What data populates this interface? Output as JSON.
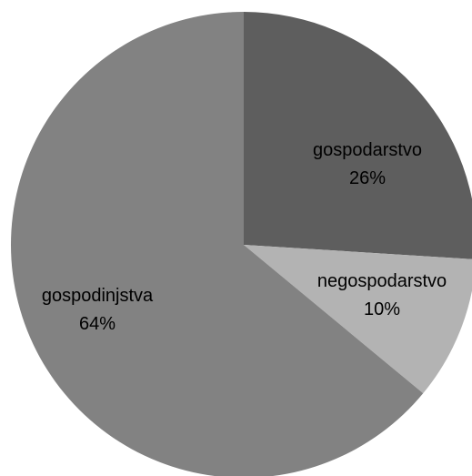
{
  "chart_data": {
    "type": "pie",
    "slices": [
      {
        "label": "gospodarstvo",
        "percent_label": "26%",
        "value": 26,
        "color": "#5e5e5e"
      },
      {
        "label": "negospodarstvo",
        "percent_label": "10%",
        "value": 10,
        "color": "#b3b3b3"
      },
      {
        "label": "gospodinjstva",
        "percent_label": "64%",
        "value": 64,
        "color": "#828282"
      }
    ],
    "start": "top",
    "direction": "clockwise",
    "legend": "none"
  }
}
